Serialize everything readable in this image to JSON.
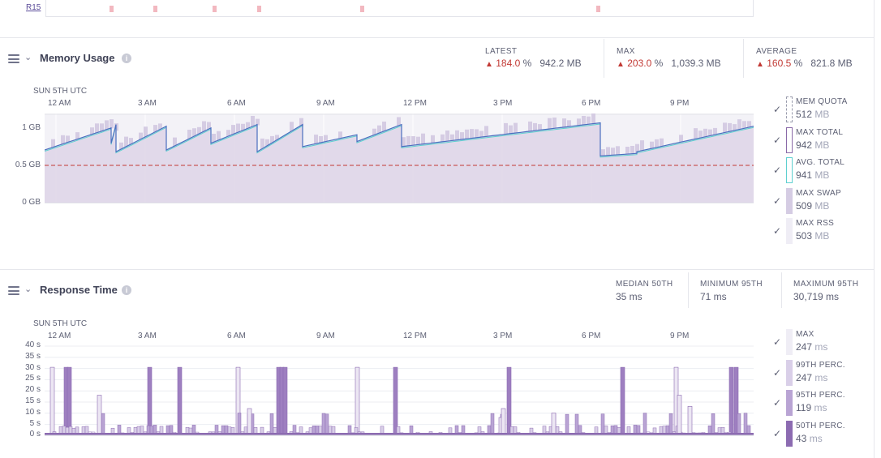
{
  "top_strip": {
    "label": "R15"
  },
  "memory": {
    "title": "Memory Usage",
    "stats": [
      {
        "label": "LATEST",
        "percent": "184.0",
        "pct_unit": "%",
        "value": "942.2 MB"
      },
      {
        "label": "MAX",
        "percent": "203.0",
        "pct_unit": "%",
        "value": "1,039.3 MB"
      },
      {
        "label": "AVERAGE",
        "percent": "160.5",
        "pct_unit": "%",
        "value": "821.8 MB"
      }
    ],
    "date": "SUN 5TH UTC",
    "time_ticks": [
      "12 AM",
      "3 AM",
      "6 AM",
      "9 AM",
      "12 PM",
      "3 PM",
      "6 PM",
      "9 PM"
    ],
    "y_ticks": [
      "1 GB",
      "0.5 GB",
      "0 GB"
    ],
    "legend": [
      {
        "name": "MEM QUOTA",
        "num": "512",
        "unit": "MB"
      },
      {
        "name": "MAX TOTAL",
        "num": "942",
        "unit": "MB"
      },
      {
        "name": "AVG. TOTAL",
        "num": "941",
        "unit": "MB"
      },
      {
        "name": "MAX SWAP",
        "num": "509",
        "unit": "MB"
      },
      {
        "name": "MAX RSS",
        "num": "503",
        "unit": "MB"
      }
    ]
  },
  "response": {
    "title": "Response Time",
    "stats": [
      {
        "label": "MEDIAN 50TH",
        "value": "35 ms"
      },
      {
        "label": "MINIMUM 95TH",
        "value": "71 ms"
      },
      {
        "label": "MAXIMUM 95TH",
        "value": "30,719 ms"
      }
    ],
    "date": "SUN 5TH UTC",
    "time_ticks": [
      "12 AM",
      "3 AM",
      "6 AM",
      "9 AM",
      "12 PM",
      "3 PM",
      "6 PM",
      "9 PM"
    ],
    "y_ticks": [
      "40 s",
      "35 s",
      "30 s",
      "25 s",
      "20 s",
      "15 s",
      "10 s",
      "5 s",
      "0 s"
    ],
    "legend": [
      {
        "name": "MAX",
        "num": "247",
        "unit": "ms"
      },
      {
        "name": "99TH PERC.",
        "num": "247",
        "unit": "ms"
      },
      {
        "name": "95TH PERC.",
        "num": "119",
        "unit": "ms"
      },
      {
        "name": "50TH PERC.",
        "num": "43",
        "unit": "ms"
      }
    ]
  },
  "icons": {
    "check": "checkmark-icon",
    "warn": "warning-triangle-icon",
    "menu": "hamburger-icon",
    "chevron": "chevron-down-icon",
    "info": "info-icon"
  },
  "colors": {
    "accent": "#5a4b99",
    "danger": "#c23934",
    "max_total": "#8a6aa8",
    "avg_total": "#5fd0d0",
    "max_swap": "#d5cce3",
    "max_rss": "#efedf5",
    "p99": "#d9cfe8",
    "p95": "#b9a4d4",
    "p50": "#8c6bb1",
    "quota_line": "#c23934",
    "line_blue": "#4a86d9"
  },
  "chart_data": [
    {
      "type": "area",
      "title": "Memory Usage",
      "x": [
        "12 AM",
        "3 AM",
        "6 AM",
        "9 AM",
        "12 PM",
        "3 PM",
        "6 PM",
        "9 PM"
      ],
      "ylabel": "",
      "ylim_gb": [
        0,
        1.05
      ],
      "series": [
        {
          "name": "MEM QUOTA",
          "values_gb": [
            0.5,
            0.5,
            0.5,
            0.5,
            0.5,
            0.5,
            0.5,
            0.5
          ]
        },
        {
          "name": "MAX TOTAL",
          "values_gb": [
            0.7,
            0.75,
            0.82,
            0.82,
            0.88,
            0.92,
            0.93,
            0.95
          ]
        },
        {
          "name": "AVG. TOTAL",
          "values_gb": [
            0.69,
            0.74,
            0.81,
            0.8,
            0.87,
            0.91,
            0.92,
            0.94
          ]
        }
      ]
    },
    {
      "type": "bar",
      "title": "Response Time",
      "x": [
        "12 AM",
        "3 AM",
        "6 AM",
        "9 AM",
        "12 PM",
        "3 PM",
        "6 PM",
        "9 PM"
      ],
      "ylim_s": [
        0,
        40
      ],
      "series": [
        {
          "name": "MAX"
        },
        {
          "name": "99TH PERC."
        },
        {
          "name": "95TH PERC."
        },
        {
          "name": "50TH PERC."
        }
      ]
    }
  ]
}
